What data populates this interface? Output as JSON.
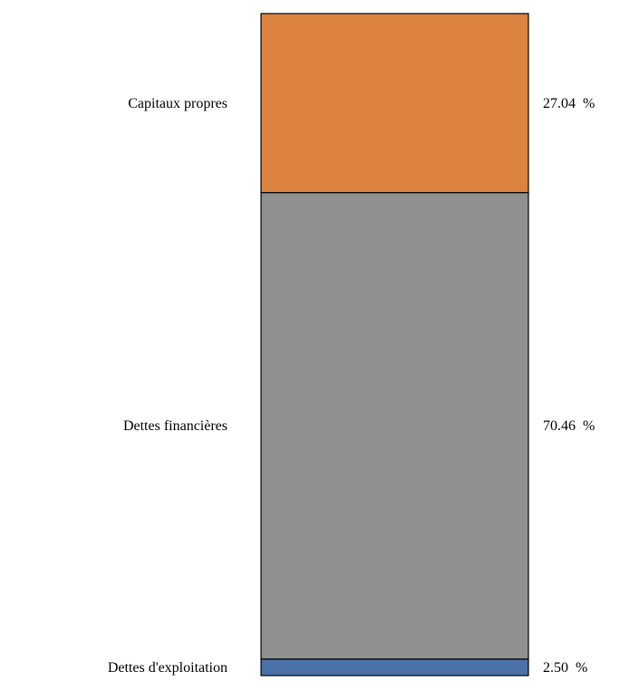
{
  "chart_data": {
    "type": "bar",
    "stacked": true,
    "unit_suffix": " %",
    "segments": [
      {
        "label": "Dettes d'exploitation",
        "value": 2.5,
        "display": "2.50  %",
        "color": "#4a72a8"
      },
      {
        "label": "Dettes financières",
        "value": 70.46,
        "display": "70.46  %",
        "color": "#909090"
      },
      {
        "label": "Capitaux propres",
        "value": 27.04,
        "display": "27.04  %",
        "color": "#dc843f"
      }
    ],
    "ylim": [
      0,
      100
    ],
    "grid": false,
    "legend": "none"
  }
}
